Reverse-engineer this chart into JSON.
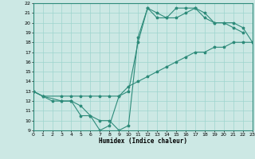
{
  "xlabel": "Humidex (Indice chaleur)",
  "xlim": [
    0,
    23
  ],
  "ylim": [
    9,
    22
  ],
  "yticks": [
    9,
    10,
    11,
    12,
    13,
    14,
    15,
    16,
    17,
    18,
    19,
    20,
    21,
    22
  ],
  "xticks": [
    0,
    1,
    2,
    3,
    4,
    5,
    6,
    7,
    8,
    9,
    10,
    11,
    12,
    13,
    14,
    15,
    16,
    17,
    18,
    19,
    20,
    21,
    22,
    23
  ],
  "line_color": "#2e8b7a",
  "bg_color": "#cce8e4",
  "grid_color": "#9dd4ce",
  "line1_x": [
    0,
    1,
    3,
    4,
    5,
    6,
    7,
    8,
    9,
    10,
    11,
    12,
    13,
    14,
    15,
    16,
    17,
    18,
    19,
    20,
    21,
    22
  ],
  "line1_y": [
    13,
    12.5,
    12,
    12,
    10.5,
    10.5,
    9,
    9.5,
    12.5,
    13,
    18,
    21.5,
    21,
    20.5,
    20.5,
    21,
    21.5,
    21,
    20,
    20,
    19.5,
    19
  ],
  "line2_x": [
    0,
    1,
    3,
    4,
    5,
    6,
    7,
    8,
    9,
    10,
    11,
    12,
    13,
    14,
    15,
    16,
    17,
    18,
    19,
    20,
    21,
    22,
    23
  ],
  "line2_y": [
    13,
    12.5,
    12.5,
    12.5,
    12.5,
    12.5,
    12.5,
    12.5,
    12.5,
    13.5,
    14,
    14.5,
    15,
    15.5,
    16,
    16.5,
    17,
    17,
    17.5,
    17.5,
    18,
    18,
    18
  ],
  "line3_x": [
    0,
    1,
    2,
    3,
    4,
    5,
    6,
    7,
    8,
    9,
    10,
    11,
    12,
    13,
    14,
    15,
    16,
    17,
    18,
    19,
    20,
    21,
    22,
    23
  ],
  "line3_y": [
    13,
    12.5,
    12,
    12,
    12,
    11.5,
    10.5,
    10,
    10,
    9,
    9.5,
    18.5,
    21.5,
    20.5,
    20.5,
    21.5,
    21.5,
    21.5,
    20.5,
    20,
    20,
    20,
    19.5,
    18
  ]
}
